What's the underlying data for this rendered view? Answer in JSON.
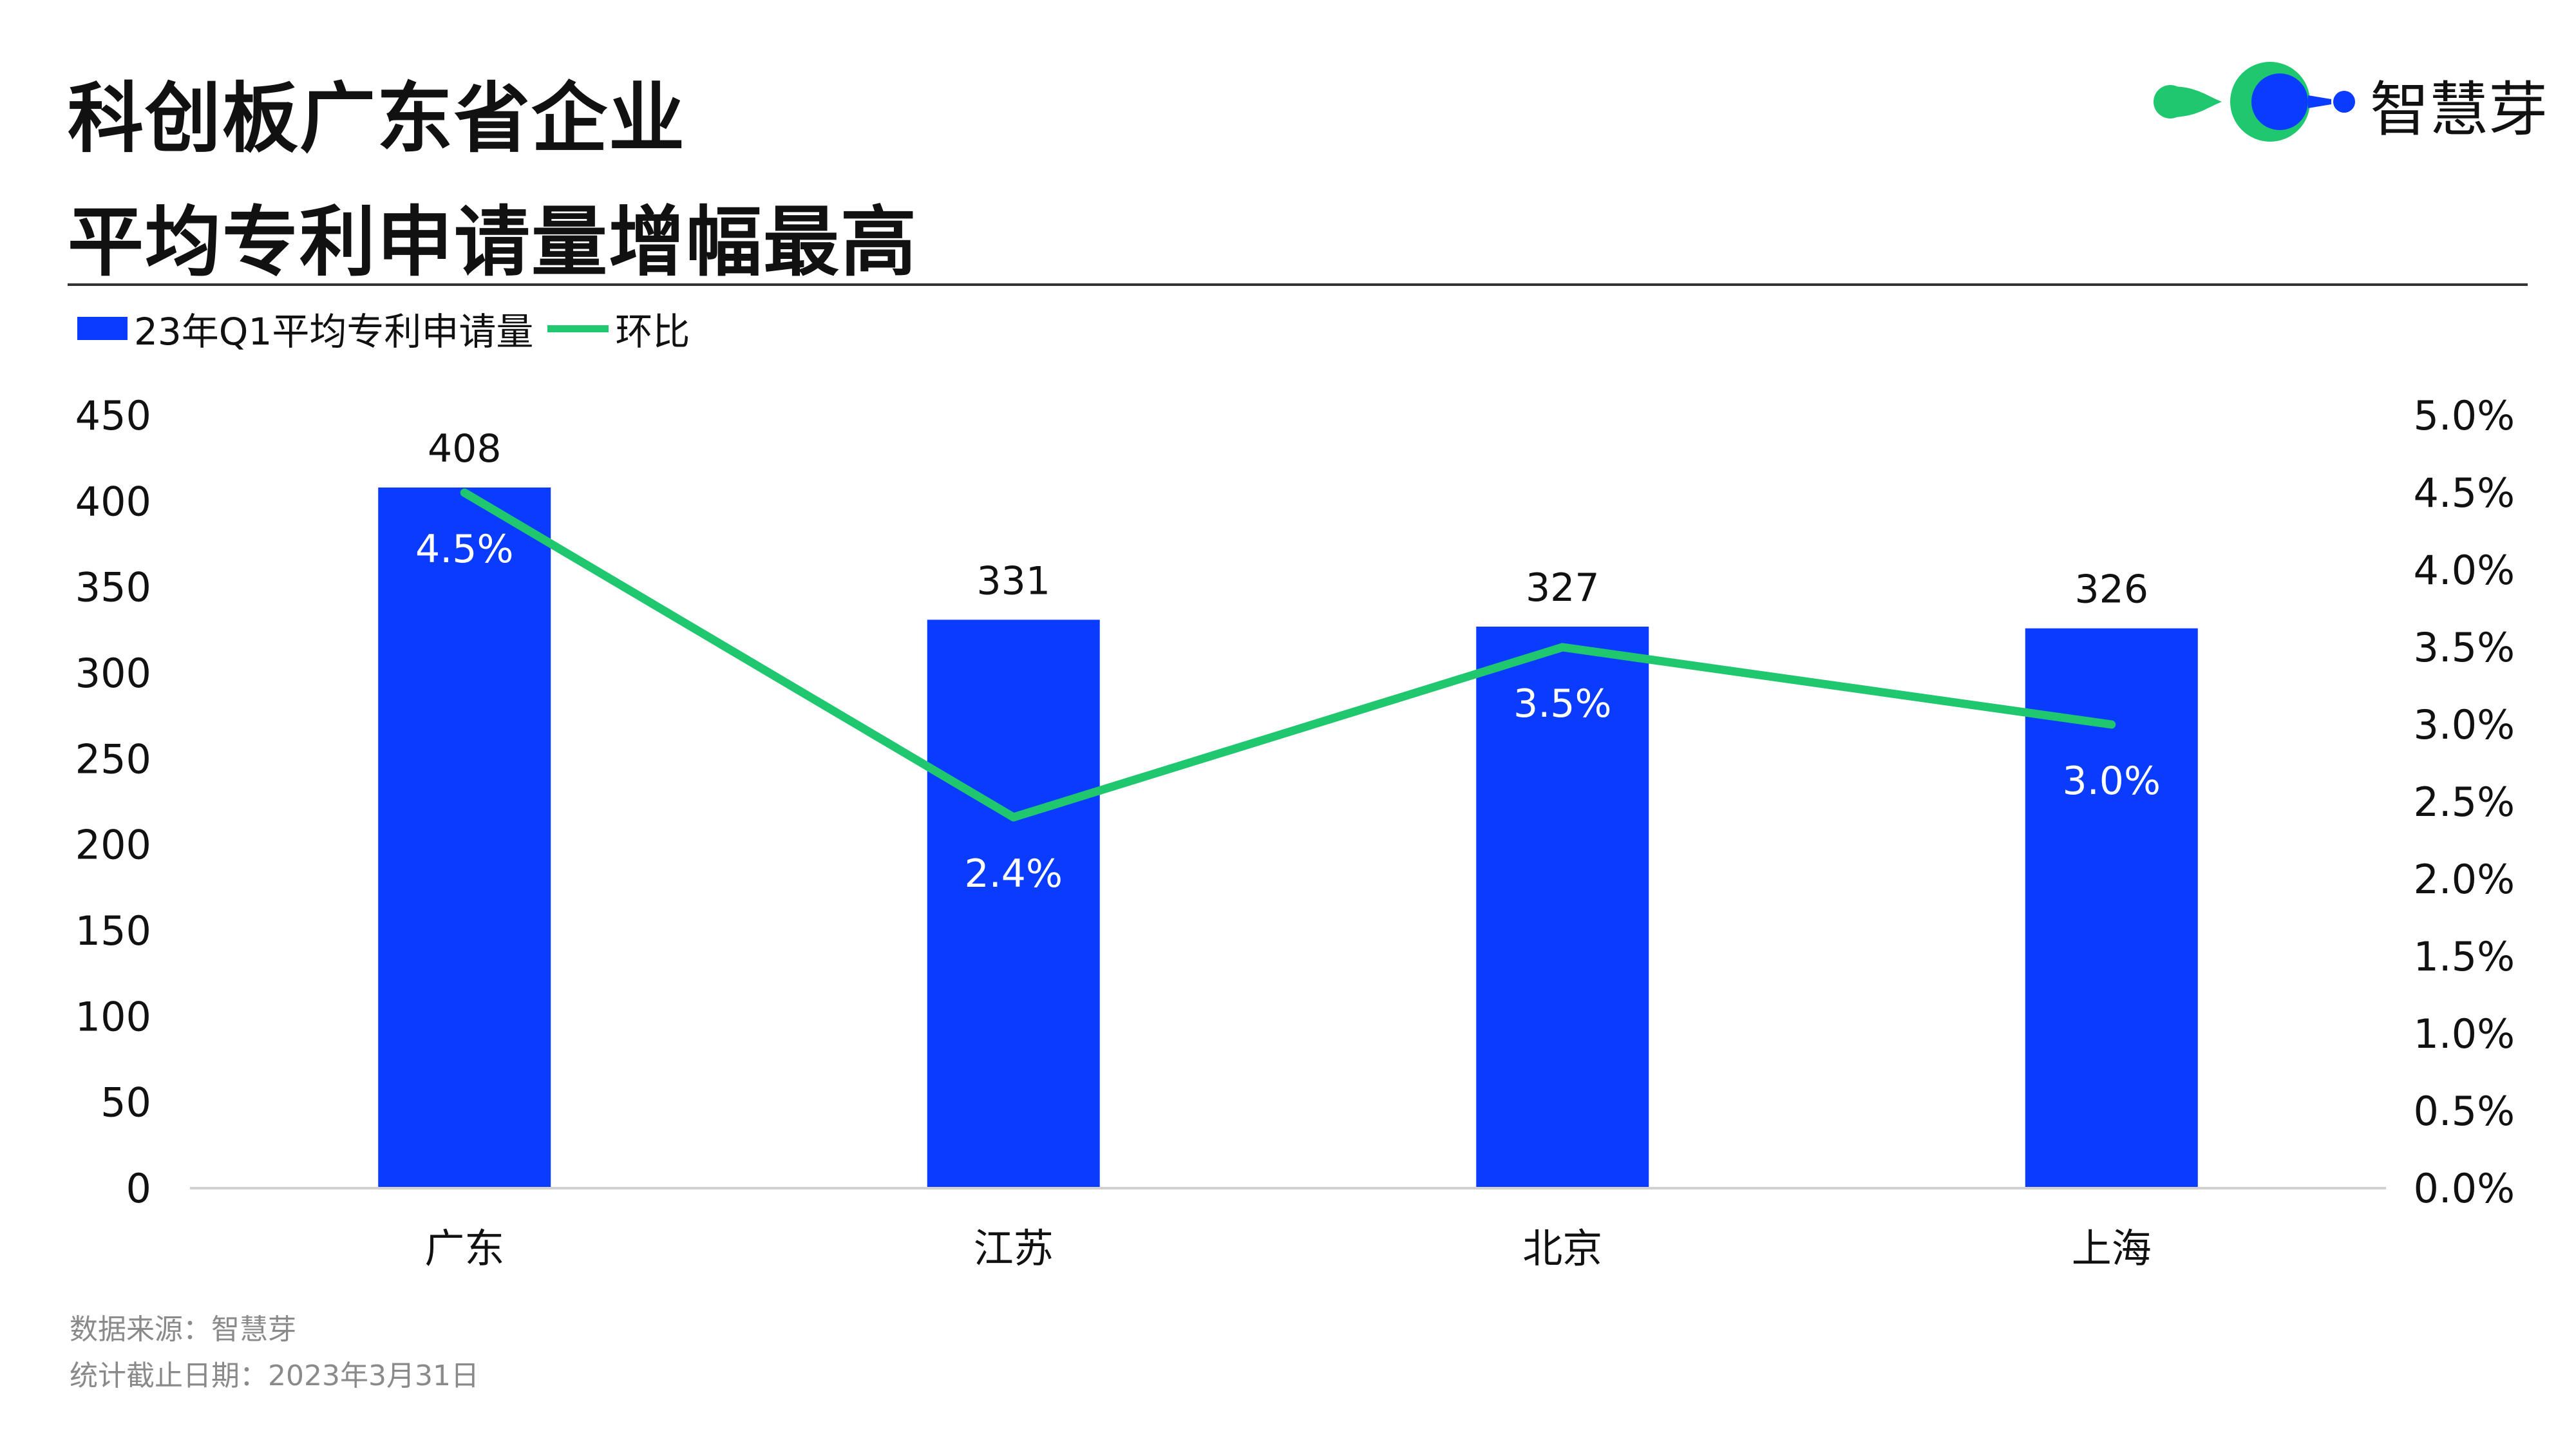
{
  "header": {
    "title_line1": "科创板广东省企业",
    "title_line2": "平均专利申请量增幅最高"
  },
  "brand": {
    "logo_text": "智慧芽",
    "logo_icon": "zhihuiya-logo-icon",
    "colors": {
      "green": "#1fc86f",
      "blue": "#0a3cff"
    }
  },
  "colors": {
    "bar": "#0a3cff",
    "line": "#1fc86f",
    "rule": "#333333",
    "footnote": "#8a8a8a"
  },
  "footer": {
    "source": "数据来源：智慧芽",
    "cutoff": "统计截止日期：2023年3月31日"
  },
  "chart_data": {
    "type": "bar",
    "categories": [
      "广东",
      "江苏",
      "北京",
      "上海"
    ],
    "series": [
      {
        "name": "23年Q1平均专利申请量",
        "type": "bar",
        "axis": "left",
        "values": [
          408,
          331,
          327,
          326
        ],
        "labels": [
          "408",
          "331",
          "327",
          "326"
        ]
      },
      {
        "name": "环比",
        "type": "line",
        "axis": "right",
        "values": [
          4.5,
          2.4,
          3.5,
          3.0
        ],
        "labels": [
          "4.5%",
          "2.4%",
          "3.5%",
          "3.0%"
        ]
      }
    ],
    "ylim": [
      0,
      450
    ],
    "y_ticks": [
      "0",
      "50",
      "100",
      "150",
      "200",
      "250",
      "300",
      "350",
      "400",
      "450"
    ],
    "y2lim": [
      0,
      5
    ],
    "y2_ticks": [
      "0.0%",
      "0.5%",
      "1.0%",
      "1.5%",
      "2.0%",
      "2.5%",
      "3.0%",
      "3.5%",
      "4.0%",
      "4.5%",
      "5.0%"
    ],
    "legend_position": "top-left",
    "grid": false
  }
}
